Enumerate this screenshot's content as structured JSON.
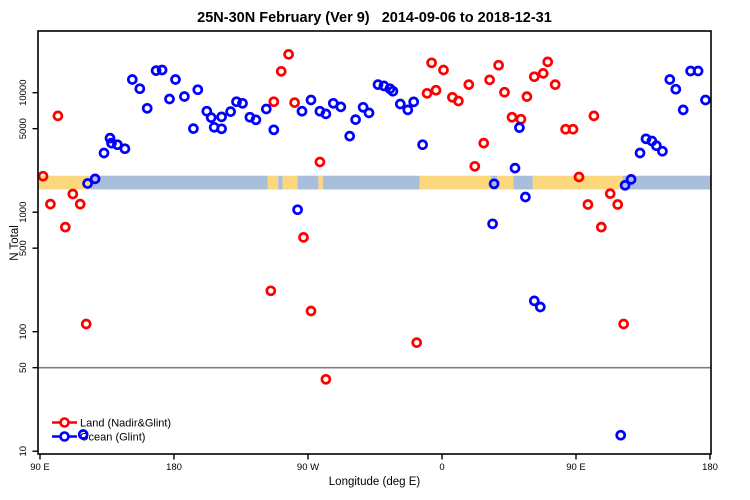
{
  "title": "25N-30N February (Ver 9)   2014-09-06 to 2018-12-31",
  "chart_data": {
    "type": "scatter",
    "xlabel": "Longitude (deg E)",
    "ylabel": "N Total",
    "x_axis": {
      "range": [
        88.7,
        540.7
      ],
      "ticks": [
        {
          "value": 90,
          "label": "90 E"
        },
        {
          "value": 180,
          "label": "180"
        },
        {
          "value": 270,
          "label": "90 W"
        },
        {
          "value": 360,
          "label": "0"
        },
        {
          "value": 450,
          "label": "90 E"
        },
        {
          "value": 540,
          "label": "180"
        }
      ]
    },
    "y_axis": {
      "scale": "log",
      "range": [
        9.5,
        32800
      ],
      "ticks": [
        {
          "value": 10,
          "label": "10"
        },
        {
          "value": 50,
          "label": "50"
        },
        {
          "value": 100,
          "label": "100"
        },
        {
          "value": 500,
          "label": "500"
        },
        {
          "value": 1000,
          "label": "1000"
        },
        {
          "value": 5000,
          "label": "5000"
        },
        {
          "value": 10000,
          "label": "10000"
        }
      ]
    },
    "reference_line": {
      "y": 50,
      "color": "#808080"
    },
    "map_band": {
      "n_top": 2020,
      "n_bottom": 1550,
      "land_color": "#FBD77D",
      "ocean_color": "#A9BEDB",
      "segments": [
        {
          "from": 88.7,
          "to": 124,
          "surface": "land"
        },
        {
          "from": 124,
          "to": 243,
          "surface": "ocean"
        },
        {
          "from": 243,
          "to": 250,
          "surface": "land"
        },
        {
          "from": 250,
          "to": 253,
          "surface": "ocean"
        },
        {
          "from": 253,
          "to": 263,
          "surface": "land"
        },
        {
          "from": 263,
          "to": 277,
          "surface": "ocean"
        },
        {
          "from": 277,
          "to": 280,
          "surface": "land"
        },
        {
          "from": 280,
          "to": 345,
          "surface": "ocean"
        },
        {
          "from": 345,
          "to": 393,
          "surface": "land"
        },
        {
          "from": 393,
          "to": 397,
          "surface": "ocean"
        },
        {
          "from": 397,
          "to": 408,
          "surface": "land"
        },
        {
          "from": 408,
          "to": 421,
          "surface": "ocean"
        },
        {
          "from": 421,
          "to": 481.5,
          "surface": "land"
        },
        {
          "from": 481.5,
          "to": 540.7,
          "surface": "ocean"
        }
      ]
    },
    "legend": [
      {
        "label": "Land (Nadir&Glint)",
        "color": "#FF0000"
      },
      {
        "label": "Ocean (Glint)",
        "color": "#0000FF"
      }
    ],
    "series": [
      {
        "name": "Land (Nadir&Glint)",
        "color": "#FF0000",
        "points": [
          [
            102,
            6400
          ],
          [
            92,
            2000
          ],
          [
            97,
            1170
          ],
          [
            112,
            1420
          ],
          [
            117,
            1170
          ],
          [
            107,
            750
          ],
          [
            121,
            116
          ],
          [
            257,
            20900
          ],
          [
            252,
            15100
          ],
          [
            247,
            8410
          ],
          [
            261,
            8260
          ],
          [
            278,
            2630
          ],
          [
            267,
            615
          ],
          [
            245,
            220
          ],
          [
            272,
            149
          ],
          [
            282,
            40
          ],
          [
            343,
            81
          ],
          [
            353,
            17800
          ],
          [
            361,
            15500
          ],
          [
            398,
            17000
          ],
          [
            431,
            18100
          ],
          [
            422,
            13600
          ],
          [
            428,
            14500
          ],
          [
            392,
            12800
          ],
          [
            378,
            11700
          ],
          [
            356,
            10500
          ],
          [
            350,
            9890
          ],
          [
            402,
            10100
          ],
          [
            367,
            9160
          ],
          [
            371,
            8530
          ],
          [
            436,
            11700
          ],
          [
            417,
            9270
          ],
          [
            407,
            6240
          ],
          [
            413,
            6000
          ],
          [
            443,
            4950
          ],
          [
            388,
            3790
          ],
          [
            382,
            2420
          ],
          [
            462,
            6400
          ],
          [
            448,
            4950
          ],
          [
            452,
            1970
          ],
          [
            473,
            1430
          ],
          [
            458,
            1160
          ],
          [
            478,
            1160
          ],
          [
            467,
            750
          ],
          [
            482,
            116
          ]
        ]
      },
      {
        "name": "Ocean (Glint)",
        "color": "#0000FF",
        "points": [
          [
            152,
            12900
          ],
          [
            157,
            10800
          ],
          [
            168,
            15300
          ],
          [
            172,
            15500
          ],
          [
            181,
            12900
          ],
          [
            162,
            7410
          ],
          [
            177,
            8860
          ],
          [
            187,
            9300
          ],
          [
            196,
            10600
          ],
          [
            202,
            7000
          ],
          [
            205,
            6190
          ],
          [
            212,
            6270
          ],
          [
            218,
            6950
          ],
          [
            222,
            8410
          ],
          [
            226,
            8150
          ],
          [
            231,
            6240
          ],
          [
            235,
            5930
          ],
          [
            193,
            5010
          ],
          [
            207,
            5130
          ],
          [
            212,
            4990
          ],
          [
            137,
            4170
          ],
          [
            138,
            3790
          ],
          [
            142,
            3670
          ],
          [
            147,
            3400
          ],
          [
            133,
            3130
          ],
          [
            127,
            1900
          ],
          [
            122,
            1740
          ],
          [
            242,
            7310
          ],
          [
            247,
            4890
          ],
          [
            272,
            8690
          ],
          [
            266,
            7000
          ],
          [
            278,
            7000
          ],
          [
            282,
            6650
          ],
          [
            287,
            8150
          ],
          [
            292,
            7600
          ],
          [
            317,
            11700
          ],
          [
            321,
            11400
          ],
          [
            325,
            10800
          ],
          [
            327,
            10300
          ],
          [
            307,
            7550
          ],
          [
            311,
            6770
          ],
          [
            302,
            5960
          ],
          [
            298,
            4330
          ],
          [
            332,
            8050
          ],
          [
            337,
            7180
          ],
          [
            341,
            8370
          ],
          [
            347,
            3670
          ],
          [
            263,
            1050
          ],
          [
            412,
            5100
          ],
          [
            409,
            2340
          ],
          [
            395,
            1730
          ],
          [
            416,
            1340
          ],
          [
            394,
            800
          ],
          [
            497,
            4110
          ],
          [
            501,
            3940
          ],
          [
            504,
            3600
          ],
          [
            508,
            3240
          ],
          [
            493,
            3130
          ],
          [
            483,
            1680
          ],
          [
            487,
            1880
          ],
          [
            513,
            12900
          ],
          [
            527,
            15200
          ],
          [
            532,
            15200
          ],
          [
            517,
            10700
          ],
          [
            537,
            8690
          ],
          [
            522,
            7180
          ],
          [
            422,
            181
          ],
          [
            426,
            161
          ],
          [
            480,
            13.6
          ],
          [
            119,
            13.8
          ]
        ]
      }
    ]
  }
}
